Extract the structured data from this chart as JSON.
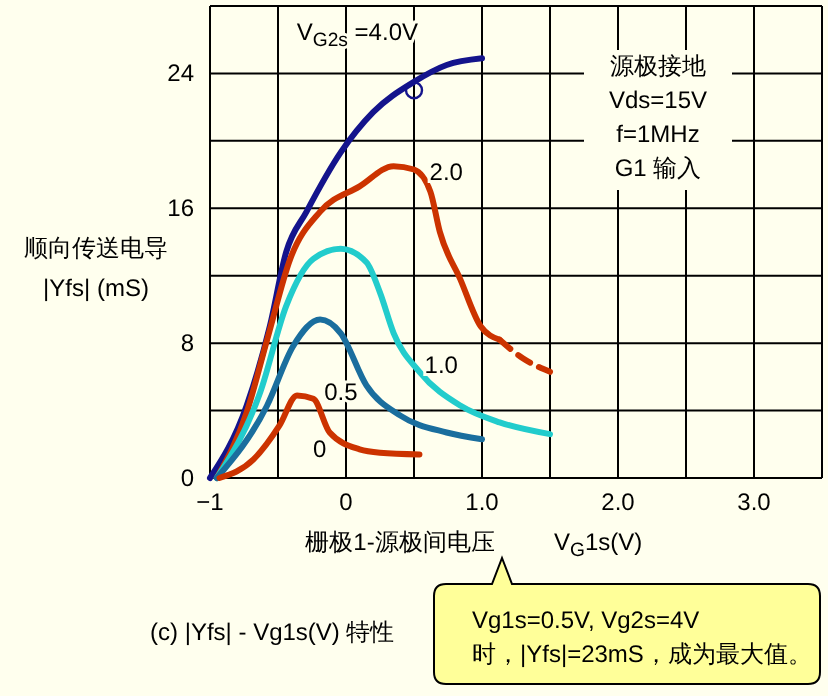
{
  "chart_data": {
    "type": "line",
    "xlabel": "栅极1-源极间电压",
    "ylabel": "顺向传送电导\n|Yfs| (mS)",
    "annotations": [
      "V$_{G}$1s(V)",
      "源极接地\nVds=15V\nf=1MHz\nG1 输入",
      "(c) |Yfs| - Vg1s(V) 特性",
      "Vg1s=0.5V, Vg2s=4V\n时，|Yfs|=23mS，成为最大值。"
    ],
    "xlim": [
      -1,
      3.5
    ],
    "ylim": [
      0,
      28
    ],
    "xticks": [
      {
        "value": -1,
        "label": "−1"
      },
      {
        "value": -0.5,
        "label": null
      },
      0,
      {
        "value": 0.5,
        "label": null
      },
      {
        "value": 1,
        "label": "1.0"
      },
      {
        "value": 1.5,
        "label": null
      },
      {
        "value": 2,
        "label": "2.0"
      },
      {
        "value": 2.5,
        "label": null
      },
      {
        "value": 3,
        "label": "3.0"
      },
      {
        "value": 3.5,
        "label": null
      }
    ],
    "yticks": [
      0,
      {
        "value": 4,
        "label": null
      },
      8,
      {
        "value": 12,
        "label": null
      },
      16,
      {
        "value": 20,
        "label": null
      },
      24,
      {
        "value": 28,
        "label": null
      }
    ],
    "grid": true,
    "line_style": "solid",
    "series": [
      {
        "name": "V$_{G2s}$ =4.0V",
        "color": "#14148c",
        "x": [
          -1,
          -0.73,
          -0.56,
          -0.44,
          -0.29,
          -0.04,
          0.2,
          0.5,
          0.74,
          1.0
        ],
        "values": [
          0,
          4.3,
          9.0,
          13.4,
          15.8,
          19.3,
          21.7,
          23.5,
          24.5,
          24.9
        ]
      },
      {
        "name": "2.0",
        "color": "#cc3300",
        "x": [
          -0.95,
          -0.73,
          -0.58,
          -0.41,
          -0.19,
          0.1,
          0.35,
          0.5,
          0.62,
          0.69,
          0.84,
          0.99,
          1.13
        ],
        "values": [
          0,
          3.9,
          8.2,
          13,
          15.8,
          17.3,
          18.5,
          18.3,
          17,
          14.6,
          11.8,
          9,
          8.2
        ]
      },
      {
        "color": "#cc3300",
        "line_style": "dashed",
        "x": [
          1.13,
          1.3,
          1.5
        ],
        "values": [
          8.2,
          7.1,
          6.3
        ]
      },
      {
        "name": "1.0",
        "color": "#22cccc",
        "x": [
          -0.95,
          -0.63,
          -0.44,
          -0.24,
          -0.04,
          0.15,
          0.25,
          0.35,
          0.54,
          0.84,
          1.13,
          1.5
        ],
        "values": [
          0,
          5.1,
          10.2,
          13,
          13.6,
          12.8,
          11,
          8.6,
          6.3,
          4.3,
          3.3,
          2.6
        ]
      },
      {
        "name": "0.5",
        "color": "#1a6e9e",
        "x": [
          -0.95,
          -0.58,
          -0.39,
          -0.19,
          -0.04,
          0.15,
          0.4,
          0.74,
          1.0
        ],
        "values": [
          0,
          4.3,
          7.8,
          9.4,
          8.6,
          5.5,
          3.7,
          2.7,
          2.3
        ]
      },
      {
        "name": "0",
        "color": "#cc3300",
        "x": [
          -0.93,
          -0.68,
          -0.49,
          -0.36,
          -0.24,
          -0.12,
          0.1,
          0.25,
          0.54
        ],
        "values": [
          0,
          1.1,
          3.1,
          4.9,
          4.7,
          2.7,
          1.7,
          1.5,
          1.4
        ]
      },
      {
        "type": "scatter",
        "marker": "circle",
        "color": "#14148c",
        "x": [
          0.5
        ],
        "values": [
          23
        ]
      }
    ]
  }
}
